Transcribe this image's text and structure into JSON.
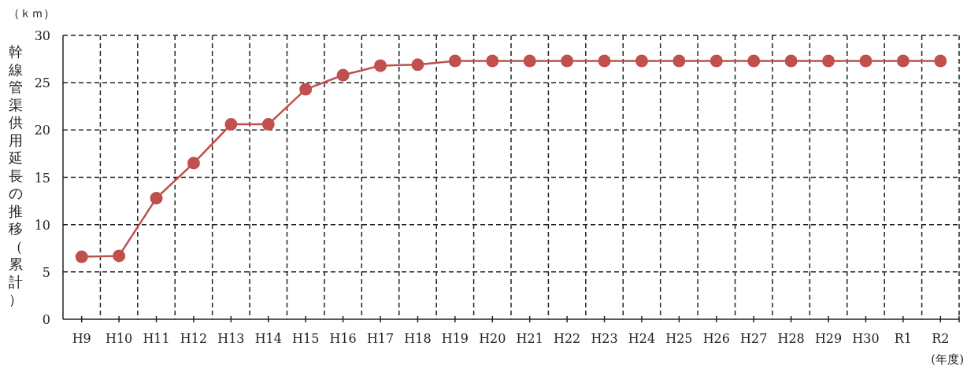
{
  "chart_data": {
    "type": "line",
    "ylabel": "幹線管渠供用延長の推移（累計）",
    "xlabel": "(年度)",
    "annotations": [
      "（ｋｍ）"
    ],
    "categories": [
      "H9",
      "H10",
      "H11",
      "H12",
      "H13",
      "H14",
      "H15",
      "H16",
      "H17",
      "H18",
      "H19",
      "H20",
      "H21",
      "H22",
      "H23",
      "H24",
      "H25",
      "H26",
      "H27",
      "H28",
      "H29",
      "H30",
      "R1",
      "R2"
    ],
    "series": [
      {
        "color": "#c0504d",
        "values": [
          6.6,
          6.7,
          12.8,
          16.5,
          20.6,
          20.6,
          24.3,
          25.8,
          26.8,
          26.9,
          27.3,
          27.3,
          27.3,
          27.3,
          27.3,
          27.3,
          27.3,
          27.3,
          27.3,
          27.3,
          27.3,
          27.3,
          27.3,
          27.3
        ]
      }
    ],
    "ylim": [
      0,
      30
    ],
    "yticks": [
      0,
      5,
      10,
      15,
      20,
      25,
      30
    ],
    "grid": true,
    "marker": "circle",
    "line_style": "solid"
  }
}
